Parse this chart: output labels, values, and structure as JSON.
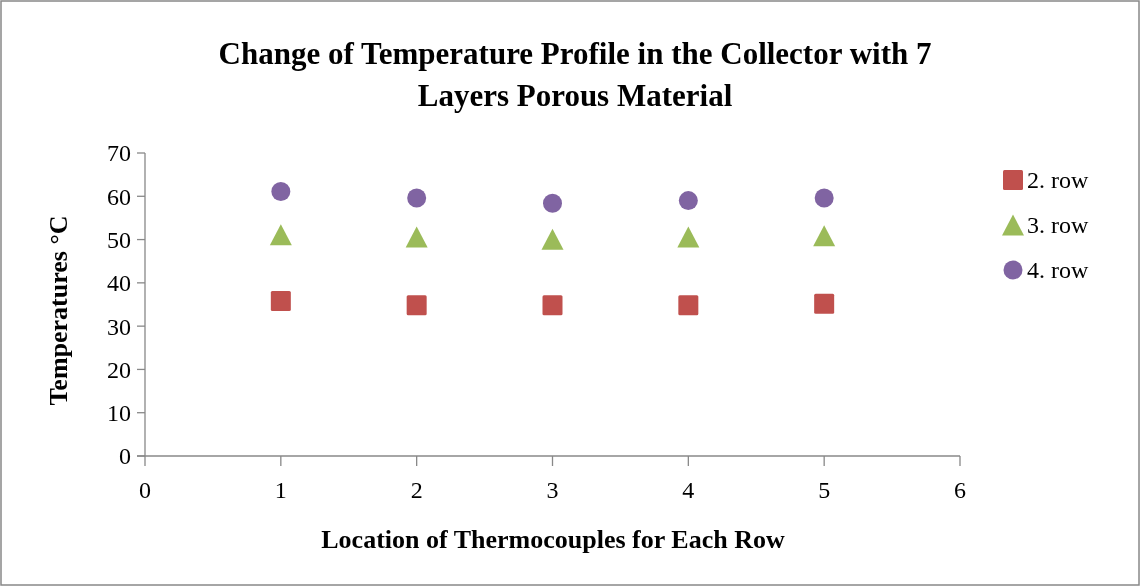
{
  "chart_data": {
    "type": "scatter",
    "title": "Change of Temperature Profile in the Collector with 7 Layers Porous Material",
    "xlabel": "Location of Thermocouples for Each Row",
    "ylabel": "Temperatures °C",
    "x": [
      1,
      2,
      3,
      4,
      5
    ],
    "xlim": [
      0,
      6
    ],
    "xticks": [
      0,
      1,
      2,
      3,
      4,
      5,
      6
    ],
    "ylim": [
      0,
      70
    ],
    "yticks": [
      0,
      10,
      20,
      30,
      40,
      50,
      60,
      70
    ],
    "grid": false,
    "legend": "right",
    "series": [
      {
        "name": "2. row",
        "color": "#c0504d",
        "marker": "square",
        "values": [
          35.8,
          34.8,
          34.8,
          34.8,
          35.2
        ]
      },
      {
        "name": "3. row",
        "color": "#9bbb59",
        "marker": "triangle",
        "values": [
          51.1,
          50.6,
          50.1,
          50.6,
          50.9
        ]
      },
      {
        "name": "4. row",
        "color": "#8064a2",
        "marker": "circle",
        "values": [
          61.1,
          59.6,
          58.4,
          59.0,
          59.6
        ]
      }
    ]
  }
}
